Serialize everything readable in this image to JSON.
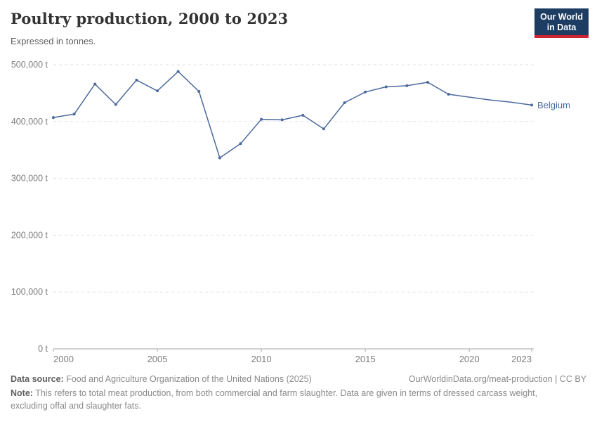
{
  "header": {
    "title": "Poultry production, 2000 to 2023",
    "subtitle": "Expressed in tonnes."
  },
  "logo": {
    "line1": "Our World",
    "line2": "in Data"
  },
  "chart_data": {
    "type": "line",
    "title": "Poultry production, 2000 to 2023",
    "xlabel": "",
    "ylabel": "",
    "unit": "tonnes",
    "xlim": [
      2000,
      2023
    ],
    "ylim": [
      0,
      500000
    ],
    "grid": "horizontal dashed",
    "legend_position": "end-of-line label",
    "line_color": "#4C6A9C",
    "axis_color": "#a5a5a5",
    "gridline_color": "#e2e2e2",
    "tick_label_color": "#7d7d7d",
    "series": [
      {
        "name": "Belgium",
        "color": "#4C6A9C",
        "x": [
          2000,
          2001,
          2002,
          2003,
          2004,
          2005,
          2006,
          2007,
          2008,
          2009,
          2010,
          2011,
          2012,
          2013,
          2014,
          2015,
          2016,
          2017,
          2018,
          2019,
          2020,
          2021,
          2022,
          2023
        ],
        "values": [
          407000,
          413000,
          466000,
          430000,
          473000,
          454000,
          488000,
          453000,
          336000,
          361000,
          404000,
          403000,
          411000,
          387000,
          433000,
          452000,
          461000,
          463000,
          469000,
          448000,
          443000,
          438000,
          434000,
          429000
        ]
      }
    ],
    "no_marker_years": [
      2020,
      2021,
      2022
    ],
    "xticks": [
      2000,
      2005,
      2010,
      2015,
      2020,
      2023
    ],
    "yticks": {
      "values": [
        0,
        100000,
        200000,
        300000,
        400000,
        500000
      ],
      "labels": [
        "0 t",
        "100,000 t",
        "200,000 t",
        "300,000 t",
        "400,000 t",
        "500,000 t"
      ]
    }
  },
  "footer": {
    "datasource_label": "Data source:",
    "datasource_text": " Food and Agriculture Organization of the United Nations (2025)",
    "url_text": "OurWorldinData.org/meat-production | CC BY",
    "note_label": "Note:",
    "note_text": " This refers to total meat production, from both commercial and farm slaughter. Data are given in terms of dressed carcass weight, excluding offal and slaughter fats."
  }
}
